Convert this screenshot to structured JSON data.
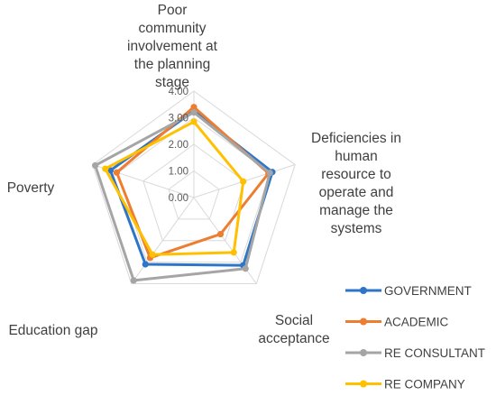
{
  "chart_data": {
    "type": "radar",
    "categories": [
      "Poor community involvement at the planning stage",
      "Deficiencies in human resource to operate and manage the systems",
      "Social acceptance",
      "Education gap",
      "Poverty"
    ],
    "category_lines": [
      [
        "Poor",
        "community",
        "involvement at",
        "the planning",
        "stage"
      ],
      [
        "Deficiencies in",
        "human",
        "resource to",
        "operate and",
        "manage the",
        "systems"
      ],
      [
        "Social",
        "acceptance"
      ],
      [
        "Education gap"
      ],
      [
        "Poverty"
      ]
    ],
    "rlim": [
      0,
      4
    ],
    "ticks": [
      "0.00",
      "1.00",
      "2.00",
      "3.00",
      "4.00"
    ],
    "series": [
      {
        "name": "GOVERNMENT",
        "color": "#2e75c8",
        "values": [
          3.25,
          3.1,
          3.15,
          3.1,
          3.3
        ]
      },
      {
        "name": "ACADEMIC",
        "color": "#ed7d31",
        "values": [
          3.4,
          2.95,
          1.7,
          2.8,
          3.05
        ]
      },
      {
        "name": "RE CONSULTANT",
        "color": "#a5a5a5",
        "values": [
          3.2,
          3.0,
          3.3,
          3.85,
          3.9
        ]
      },
      {
        "name": "RE COMPANY",
        "color": "#ffc000",
        "values": [
          2.85,
          1.95,
          2.55,
          2.65,
          3.5
        ]
      }
    ],
    "legend_position": "bottom-right",
    "grid": true
  }
}
